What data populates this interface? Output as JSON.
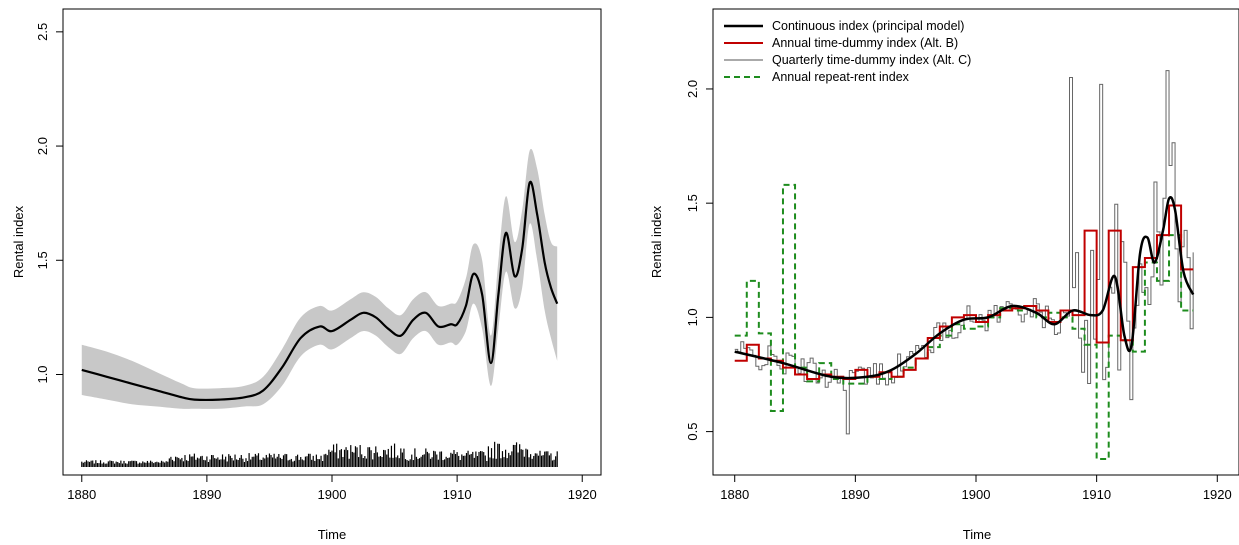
{
  "chart_data": [
    {
      "type": "line",
      "panel": "left",
      "xlabel": "Time",
      "ylabel": "Rental index",
      "xlim": [
        1878.5,
        1921.5
      ],
      "ylim": [
        0.56,
        2.6
      ],
      "x_ticks": [
        "1880",
        "1890",
        "1900",
        "1910",
        "1920"
      ],
      "y_ticks": [
        "1.0",
        "1.5",
        "2.0",
        "2.5"
      ],
      "grid": false,
      "series": [
        {
          "color": "#000000",
          "band_color": "#c8c8c8",
          "x": [
            1880,
            1882,
            1884,
            1886,
            1888,
            1889,
            1891,
            1893,
            1894.5,
            1896,
            1897.5,
            1899,
            1900,
            1901.5,
            1902.5,
            1903.5,
            1904.5,
            1905.5,
            1906.5,
            1907.5,
            1908.5,
            1909.5,
            1910,
            1910.7,
            1911.3,
            1912,
            1912.7,
            1913.3,
            1913.9,
            1914.6,
            1915.2,
            1915.8,
            1916.4,
            1917,
            1917.5,
            1918
          ],
          "y": [
            1.02,
            0.99,
            0.96,
            0.93,
            0.9,
            0.89,
            0.89,
            0.9,
            0.93,
            1.03,
            1.16,
            1.21,
            1.19,
            1.24,
            1.27,
            1.25,
            1.2,
            1.17,
            1.24,
            1.27,
            1.21,
            1.22,
            1.22,
            1.3,
            1.44,
            1.35,
            1.05,
            1.35,
            1.62,
            1.43,
            1.55,
            1.84,
            1.7,
            1.49,
            1.38,
            1.31
          ],
          "lower": [
            0.91,
            0.89,
            0.87,
            0.86,
            0.85,
            0.85,
            0.85,
            0.86,
            0.87,
            0.95,
            1.08,
            1.13,
            1.11,
            1.16,
            1.19,
            1.17,
            1.12,
            1.09,
            1.16,
            1.19,
            1.13,
            1.14,
            1.13,
            1.19,
            1.31,
            1.2,
            0.95,
            1.2,
            1.45,
            1.29,
            1.38,
            1.66,
            1.5,
            1.28,
            1.16,
            1.06
          ],
          "upper": [
            1.13,
            1.1,
            1.06,
            1.01,
            0.96,
            0.94,
            0.94,
            0.95,
            0.99,
            1.11,
            1.25,
            1.3,
            1.28,
            1.33,
            1.36,
            1.34,
            1.29,
            1.26,
            1.33,
            1.36,
            1.3,
            1.31,
            1.32,
            1.42,
            1.57,
            1.5,
            1.17,
            1.5,
            1.78,
            1.58,
            1.72,
            1.98,
            1.9,
            1.7,
            1.58,
            1.56
          ]
        }
      ]
    },
    {
      "type": "line",
      "panel": "right",
      "xlabel": "Time",
      "ylabel": "Rental index",
      "xlim": [
        1878.2,
        1921.8
      ],
      "ylim": [
        0.31,
        2.35
      ],
      "x_ticks": [
        "1880",
        "1890",
        "1900",
        "1910",
        "1920"
      ],
      "y_ticks": [
        "0.5",
        "1.0",
        "1.5",
        "2.0"
      ],
      "grid": false,
      "legend": "top-left",
      "series": [
        {
          "name": "Continuous index (principal model)",
          "color": "#000000",
          "style": "solid-thick",
          "x": [
            1880,
            1884,
            1888,
            1891,
            1893,
            1895,
            1897,
            1899,
            1901,
            1903,
            1905,
            1906.5,
            1908,
            1909.5,
            1910.5,
            1911.5,
            1912.3,
            1912.9,
            1913.6,
            1914.2,
            1914.8,
            1915.5,
            1916,
            1916.5,
            1917.2,
            1918
          ],
          "y": [
            0.85,
            0.8,
            0.74,
            0.74,
            0.77,
            0.84,
            0.93,
            0.99,
            1.0,
            1.05,
            1.02,
            0.97,
            1.03,
            1.01,
            1.03,
            1.18,
            0.92,
            0.88,
            1.28,
            1.35,
            1.24,
            1.38,
            1.52,
            1.47,
            1.2,
            1.1
          ]
        },
        {
          "name": "Annual time-dummy index (Alt. B)",
          "color": "#c00000",
          "style": "step",
          "x": [
            1880,
            1881,
            1882,
            1883,
            1884,
            1885,
            1886,
            1887,
            1888,
            1889,
            1890,
            1891,
            1892,
            1893,
            1894,
            1895,
            1896,
            1897,
            1898,
            1899,
            1900,
            1901,
            1902,
            1903,
            1904,
            1905,
            1906,
            1907,
            1908,
            1909,
            1910,
            1911,
            1912,
            1913,
            1914,
            1915,
            1916,
            1917,
            1918
          ],
          "y": [
            0.81,
            0.88,
            0.82,
            0.81,
            0.78,
            0.75,
            0.73,
            0.75,
            0.74,
            0.73,
            0.77,
            0.74,
            0.76,
            0.74,
            0.77,
            0.82,
            0.91,
            0.96,
            1.0,
            1.01,
            0.98,
            1.01,
            1.03,
            1.04,
            1.05,
            1.03,
            0.98,
            1.03,
            1.01,
            1.38,
            0.89,
            1.38,
            0.9,
            1.22,
            1.26,
            1.36,
            1.49,
            1.21,
            1.21
          ]
        },
        {
          "name": "Quarterly time-dummy index (Alt. C)",
          "color": "#555555",
          "style": "step-thin"
        },
        {
          "name": "Annual repeat-rent index",
          "color": "#1e8c1e",
          "style": "dashed-step",
          "x": [
            1880,
            1881,
            1882,
            1883,
            1884,
            1885,
            1886,
            1887,
            1888,
            1889,
            1890,
            1891,
            1892,
            1893,
            1894,
            1895,
            1896,
            1897,
            1898,
            1899,
            1900,
            1901,
            1902,
            1903,
            1904,
            1905,
            1906,
            1907,
            1908,
            1909,
            1910,
            1911,
            1912,
            1913,
            1914,
            1915,
            1916,
            1917,
            1918
          ],
          "y": [
            0.92,
            1.16,
            0.93,
            0.59,
            1.58,
            0.78,
            0.72,
            0.8,
            0.73,
            0.71,
            0.71,
            0.74,
            0.73,
            0.74,
            0.78,
            0.82,
            0.87,
            0.92,
            0.97,
            0.95,
            0.96,
            1.0,
            1.04,
            1.03,
            1.05,
            1.0,
            1.02,
            1.0,
            0.95,
            0.88,
            0.38,
            0.92,
            0.9,
            0.85,
            1.24,
            1.16,
            1.36,
            1.03,
            1.03
          ]
        }
      ]
    }
  ]
}
